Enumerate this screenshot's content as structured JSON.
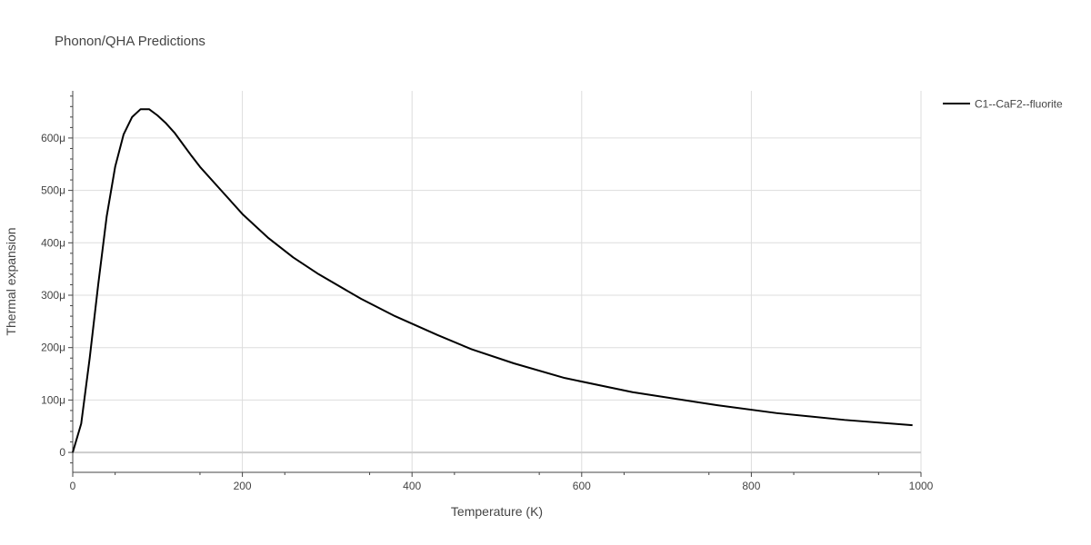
{
  "chart_data": {
    "type": "line",
    "title": "Phonon/QHA Predictions",
    "xlabel": "Temperature (K)",
    "ylabel": "Thermal expansion",
    "xlim": [
      0,
      1000
    ],
    "ylim": [
      -38,
      690
    ],
    "x_ticks": [
      0,
      200,
      400,
      600,
      800,
      1000
    ],
    "x_tick_labels": [
      "0",
      "200",
      "400",
      "600",
      "800",
      "1000"
    ],
    "y_ticks": [
      0,
      100,
      200,
      300,
      400,
      500,
      600
    ],
    "y_tick_labels": [
      "0",
      "100μ",
      "200μ",
      "300μ",
      "400μ",
      "500μ",
      "600μ"
    ],
    "grid": true,
    "legend_position": "top-right",
    "series": [
      {
        "name": "C1--CaF2--fluorite",
        "color": "#000000",
        "x": [
          0,
          10,
          20,
          30,
          40,
          50,
          60,
          70,
          80,
          90,
          100,
          110,
          120,
          130,
          140,
          150,
          175,
          200,
          230,
          260,
          290,
          340,
          380,
          430,
          470,
          520,
          580,
          660,
          760,
          830,
          910,
          990
        ],
        "y": [
          0,
          55,
          180,
          320,
          450,
          545,
          607,
          640,
          655,
          655,
          643,
          628,
          610,
          588,
          566,
          545,
          500,
          455,
          410,
          372,
          340,
          293,
          260,
          224,
          197,
          170,
          142,
          115,
          90,
          75,
          62,
          52
        ]
      }
    ]
  }
}
